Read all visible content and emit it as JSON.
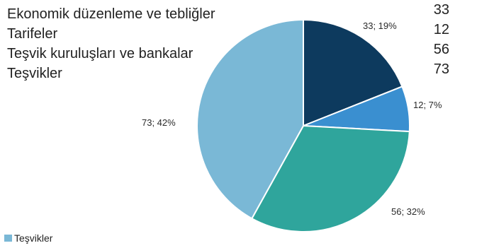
{
  "chart_data": {
    "type": "pie",
    "categories": [
      "Ekonomik düzenleme ve tebliğler",
      "Tarifeler",
      "Teşvik kuruluşları ve bankalar",
      "Teşvikler"
    ],
    "values": [
      33,
      12,
      56,
      73
    ],
    "value_texts": [
      "33",
      "12",
      "56",
      "73"
    ],
    "slice_labels": [
      "33; 19%",
      "12; 7%",
      "56; 32%",
      "73; 42%"
    ],
    "colors": [
      "#0d3a5e",
      "#3a8fd0",
      "#2fa59c",
      "#7ab8d6"
    ],
    "legend": [
      {
        "label": "Teşvikler",
        "color": "#7ab8d6"
      }
    ],
    "start_angle_deg": 0,
    "direction": "clockwise"
  }
}
